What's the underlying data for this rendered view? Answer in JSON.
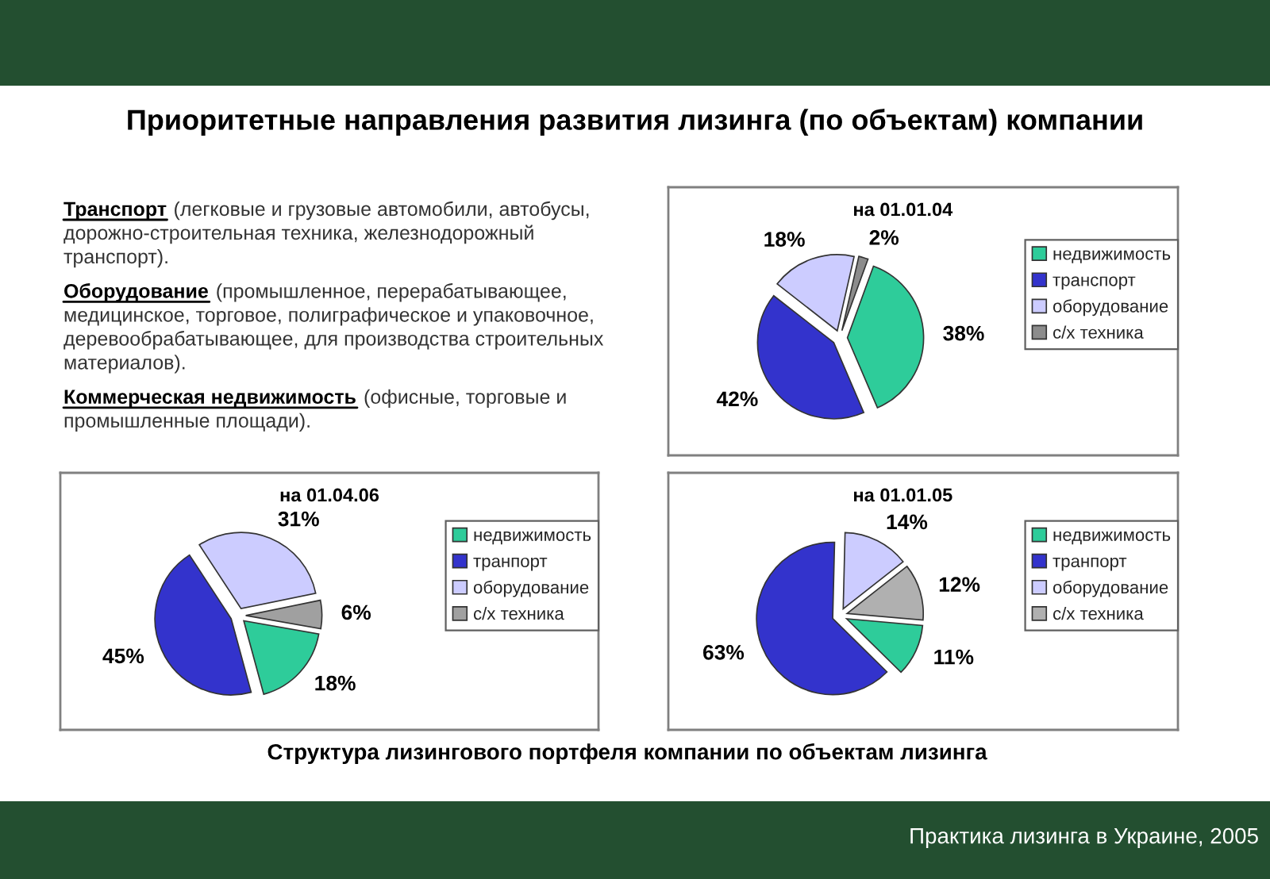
{
  "chart_data": [
    {
      "type": "other",
      "title": "Приоритетные направления развития лизинга (по объектам) компании"
    },
    {
      "type": "other",
      "title": "Транспорт",
      "annotations": [
        "(легковые и грузовые автомобили, автобусы,",
        "дорожно-строительная техника, железнодорожный",
        "транспорт)."
      ]
    },
    {
      "type": "other",
      "title": "Оборудование",
      "annotations": [
        "(промышленное, перерабатывающее,",
        "медицинское, торговое, полиграфическое и упаковочное,",
        "деревообрабатывающее, для производства строительных",
        "материалов)."
      ]
    },
    {
      "type": "other",
      "title": "Коммерческая недвижимость",
      "annotations": [
        "(офисные, торговые и",
        "промышленные площади)."
      ]
    },
    {
      "type": "pie",
      "title": "на 01.01.04",
      "categories": [
        "недвижимость",
        "транспорт",
        "оборудование",
        "с/х техника"
      ],
      "values": [
        38,
        42,
        18,
        2
      ],
      "value_labels": [
        "38%",
        "42%",
        "18%",
        "2%"
      ],
      "colors": [
        "#2ecc9a",
        "#3333cc",
        "#ccccff",
        "#8c8c8c"
      ],
      "legend": "right"
    },
    {
      "type": "pie",
      "title": "на 01.04.06",
      "categories": [
        "недвижимость",
        "транпорт",
        "оборудование",
        "с/х техника"
      ],
      "values": [
        18,
        45,
        31,
        6
      ],
      "value_labels": [
        "18%",
        "45%",
        "31%",
        "6%"
      ],
      "colors": [
        "#2ecc9a",
        "#3333cc",
        "#ccccff",
        "#a0a0a0"
      ],
      "legend": "right"
    },
    {
      "type": "pie",
      "title": "на 01.01.05",
      "categories": [
        "недвижимость",
        "транпорт",
        "оборудование",
        "с/х техника"
      ],
      "values": [
        11,
        63,
        14,
        12
      ],
      "value_labels": [
        "11%",
        "63%",
        "14%",
        "12%"
      ],
      "colors": [
        "#2ecc9a",
        "#3333cc",
        "#ccccff",
        "#b0b0b0"
      ],
      "legend": "right"
    },
    {
      "type": "other",
      "title": "Структура лизингового портфеля компании по объектам лизинга",
      "annotations": [
        "Практика лизинга в Украине, 2005"
      ]
    }
  ]
}
